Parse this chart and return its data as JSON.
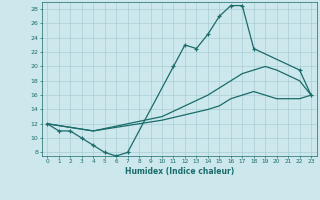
{
  "xlabel": "Humidex (Indice chaleur)",
  "bg_color": "#cce8ec",
  "grid_color": "#aacdd4",
  "line_color": "#1a6b6b",
  "xlim": [
    -0.5,
    23.5
  ],
  "ylim": [
    7.5,
    29
  ],
  "xticks": [
    0,
    1,
    2,
    3,
    4,
    5,
    6,
    7,
    8,
    9,
    10,
    11,
    12,
    13,
    14,
    15,
    16,
    17,
    18,
    19,
    20,
    21,
    22,
    23
  ],
  "yticks": [
    8,
    10,
    12,
    14,
    16,
    18,
    20,
    22,
    24,
    26,
    28
  ],
  "line1_x": [
    0,
    1,
    2,
    3,
    4,
    5,
    6,
    7,
    11,
    12,
    13,
    14,
    15,
    16,
    17,
    18,
    22,
    23
  ],
  "line1_y": [
    12,
    11,
    11,
    10,
    9,
    8,
    7.5,
    8,
    20,
    23,
    22.5,
    24.5,
    27,
    28.5,
    28.5,
    22.5,
    19.5,
    16
  ],
  "line2_x": [
    0,
    4,
    10,
    14,
    15,
    16,
    17,
    18,
    19,
    20,
    22,
    23
  ],
  "line2_y": [
    12,
    11,
    13,
    16,
    17,
    18,
    19,
    19.5,
    20,
    19.5,
    18,
    16
  ],
  "line3_x": [
    0,
    4,
    10,
    14,
    15,
    16,
    17,
    18,
    19,
    20,
    22,
    23
  ],
  "line3_y": [
    12,
    11,
    12.5,
    14,
    14.5,
    15.5,
    16,
    16.5,
    16,
    15.5,
    15.5,
    16
  ]
}
